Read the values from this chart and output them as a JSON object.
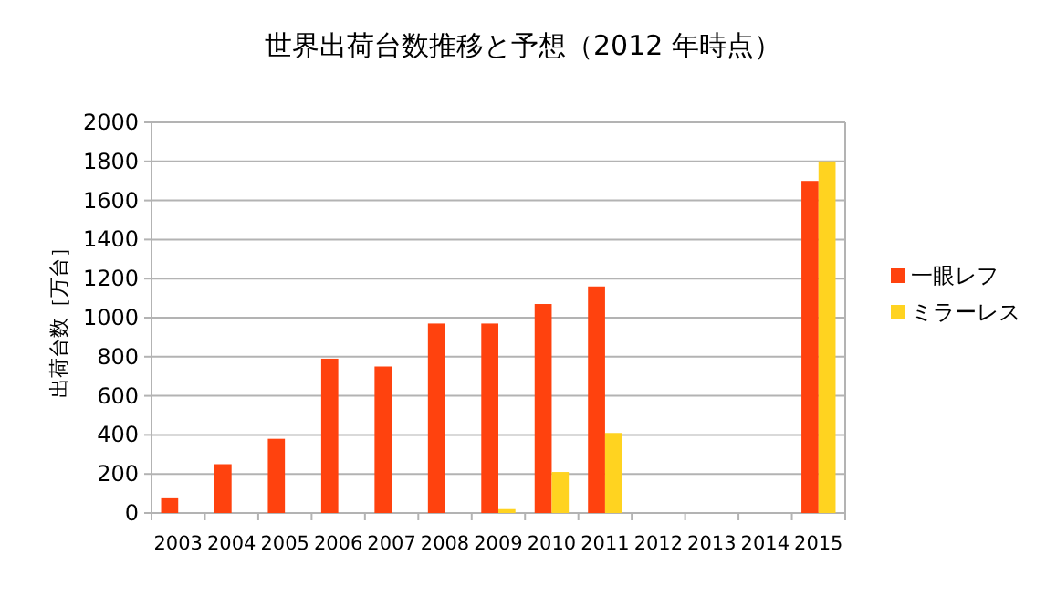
{
  "chart_data": {
    "type": "bar",
    "title": "世界出荷台数推移と予想（2012 年時点）",
    "ylabel": "出荷台数［万台］",
    "categories": [
      "2003",
      "2004",
      "2005",
      "2006",
      "2007",
      "2008",
      "2009",
      "2010",
      "2011",
      "2012",
      "2013",
      "2014",
      "2015"
    ],
    "series": [
      {
        "name": "一眼レフ",
        "color": "#ff420e",
        "values": [
          80,
          250,
          380,
          790,
          750,
          970,
          970,
          1070,
          1160,
          null,
          null,
          null,
          1700
        ]
      },
      {
        "name": "ミラーレス",
        "color": "#ffd320",
        "values": [
          null,
          null,
          null,
          null,
          null,
          null,
          20,
          210,
          410,
          null,
          null,
          null,
          1800
        ]
      }
    ],
    "ylim": [
      0,
      2000
    ],
    "yticks": [
      0,
      200,
      400,
      600,
      800,
      1000,
      1200,
      1400,
      1600,
      1800,
      2000
    ],
    "grid": "y",
    "legend": "right"
  }
}
